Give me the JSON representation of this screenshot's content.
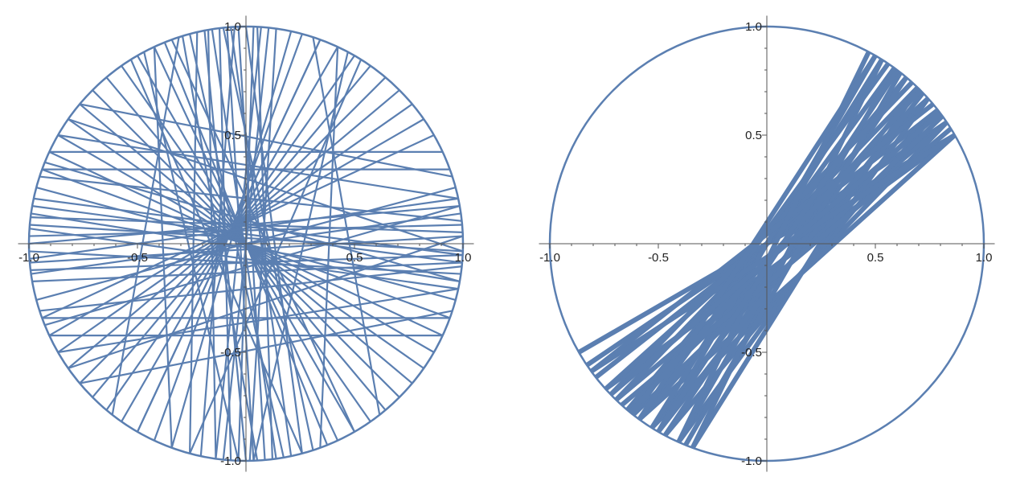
{
  "chart_data": [
    {
      "type": "line",
      "title": "",
      "xlabel": "",
      "ylabel": "",
      "xlim": [
        -1.05,
        1.05
      ],
      "ylim": [
        -1.05,
        1.05
      ],
      "grid": false,
      "x_ticks": [
        "-1.0",
        "-0.5",
        "0.5",
        "1.0"
      ],
      "y_ticks": [
        "1.0",
        "0.5",
        "-0.5",
        "-1.0"
      ],
      "circle": {
        "center": [
          0,
          0
        ],
        "radius": 1
      },
      "series": [
        {
          "chords_deg": [
            [
              101,
              270
            ],
            [
              95,
              272
            ],
            [
              92,
              275
            ],
            [
              88,
              268
            ],
            [
              97,
              266
            ],
            [
              105,
              280
            ],
            [
              86,
              262
            ],
            [
              99,
              278
            ],
            [
              84,
              264
            ],
            [
              93,
              258
            ],
            [
              107,
              273
            ],
            [
              90,
              285
            ],
            [
              82,
              271
            ],
            [
              103,
              255
            ],
            [
              96,
              288
            ],
            [
              78,
              250
            ],
            [
              112,
              292
            ],
            [
              87,
              277
            ],
            [
              100,
              262
            ],
            [
              94,
              282
            ],
            [
              75,
              245
            ],
            [
              115,
              295
            ],
            [
              70,
              240
            ],
            [
              120,
              300
            ],
            [
              65,
              235
            ],
            [
              125,
              305
            ],
            [
              60,
              230
            ],
            [
              130,
              310
            ],
            [
              55,
              225
            ],
            [
              135,
              315
            ],
            [
              50,
              220
            ],
            [
              140,
              320
            ],
            [
              45,
              215
            ],
            [
              145,
              325
            ],
            [
              40,
              210
            ],
            [
              150,
              330
            ],
            [
              35,
              205
            ],
            [
              155,
              335
            ],
            [
              30,
              200
            ],
            [
              160,
              340
            ],
            [
              178,
              5
            ],
            [
              182,
              352
            ],
            [
              175,
              358
            ],
            [
              185,
              2
            ],
            [
              170,
              355
            ],
            [
              188,
              8
            ],
            [
              172,
              350
            ],
            [
              180,
              10
            ],
            [
              168,
              357
            ],
            [
              190,
              355
            ],
            [
              176,
              348
            ],
            [
              184,
              12
            ],
            [
              165,
              345
            ],
            [
              195,
              15
            ],
            [
              173,
              3
            ],
            [
              187,
              357
            ],
            [
              160,
              20
            ],
            [
              200,
              340
            ],
            [
              155,
              25
            ],
            [
              205,
              335
            ],
            [
              150,
              12
            ],
            [
              210,
              348
            ],
            [
              145,
              358
            ],
            [
              215,
              2
            ],
            [
              140,
              18
            ],
            [
              220,
              342
            ],
            [
              162,
              6
            ],
            [
              198,
              354
            ],
            [
              158,
              350
            ],
            [
              202,
              10
            ],
            [
              115,
              250
            ],
            [
              65,
              290
            ],
            [
              110,
              300
            ],
            [
              70,
              240
            ],
            [
              118,
              268
            ],
            [
              62,
              272
            ],
            [
              108,
              232
            ],
            [
              72,
              308
            ],
            [
              122,
              285
            ],
            [
              58,
              255
            ]
          ]
        }
      ]
    },
    {
      "type": "line",
      "title": "",
      "xlabel": "",
      "ylabel": "",
      "xlim": [
        -1.05,
        1.05
      ],
      "ylim": [
        -1.05,
        1.05
      ],
      "grid": false,
      "x_ticks": [
        "-1.0",
        "-0.5",
        "0.5",
        "1.0"
      ],
      "y_ticks": [
        "1.0",
        "0.5",
        "-0.5",
        "-1.0"
      ],
      "circle": {
        "center": [
          0,
          0
        ],
        "radius": 1
      },
      "series": [
        {
          "chords_deg": [
            [
              30,
              210
            ],
            [
              30,
              222
            ],
            [
              30,
              234
            ],
            [
              34,
              214
            ],
            [
              34,
              226
            ],
            [
              34,
              238
            ],
            [
              38,
              218
            ],
            [
              38,
              230
            ],
            [
              38,
              242
            ],
            [
              42,
              222
            ],
            [
              42,
              234
            ],
            [
              42,
              246
            ],
            [
              46,
              226
            ],
            [
              46,
              238
            ],
            [
              46,
              250
            ],
            [
              50,
              230
            ],
            [
              50,
              242
            ],
            [
              54,
              234
            ],
            [
              54,
              246
            ],
            [
              58,
              238
            ],
            [
              58,
              250
            ],
            [
              60,
              240
            ],
            [
              44,
              240
            ],
            [
              36,
              232
            ],
            [
              52,
              248
            ],
            [
              48,
              224
            ],
            [
              40,
              216
            ],
            [
              56,
              232
            ],
            [
              32,
              228
            ],
            [
              62,
              246
            ],
            [
              30,
              216
            ],
            [
              60,
              234
            ],
            [
              45,
              231
            ],
            [
              37,
              224
            ],
            [
              53,
              240
            ]
          ]
        }
      ]
    }
  ]
}
